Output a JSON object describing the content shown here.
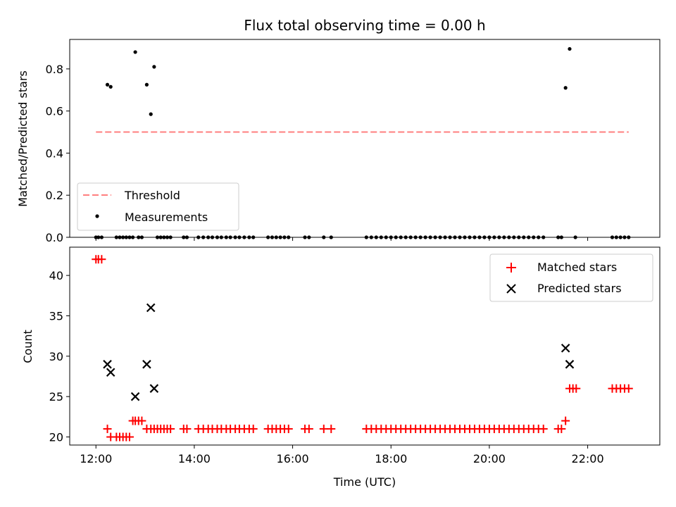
{
  "chart_data": [
    {
      "type": "scatter",
      "title": "Flux total observing time = 0.00 h",
      "xlabel": "",
      "ylabel": "Matched/Predicted stars",
      "xlim": [
        "11:28",
        "23:28"
      ],
      "ylim": [
        0,
        0.94
      ],
      "yticks": [
        "0.0",
        "0.2",
        "0.4",
        "0.6",
        "0.8"
      ],
      "legend": {
        "position": "lower-left",
        "entries": [
          {
            "label": "Threshold",
            "marker": "dashed-line",
            "color": "#ff7f7f"
          },
          {
            "label": "Measurements",
            "marker": "dot",
            "color": "#000000"
          }
        ]
      },
      "threshold": {
        "y": 0.5,
        "x_from": "12:00",
        "x_to": "22:50",
        "color": "#ff7f7f"
      },
      "series": [
        {
          "name": "Measurements",
          "color": "#000000",
          "points": [
            {
              "x": "12:00",
              "y": 0
            },
            {
              "x": "12:03",
              "y": 0
            },
            {
              "x": "12:07",
              "y": 0
            },
            {
              "x": "12:14",
              "y": 0.725
            },
            {
              "x": "12:18",
              "y": 0.715
            },
            {
              "x": "12:25",
              "y": 0
            },
            {
              "x": "12:29",
              "y": 0
            },
            {
              "x": "12:33",
              "y": 0
            },
            {
              "x": "12:37",
              "y": 0
            },
            {
              "x": "12:41",
              "y": 0
            },
            {
              "x": "12:45",
              "y": 0
            },
            {
              "x": "12:48",
              "y": 0.88
            },
            {
              "x": "12:52",
              "y": 0
            },
            {
              "x": "12:56",
              "y": 0
            },
            {
              "x": "13:02",
              "y": 0.725
            },
            {
              "x": "13:07",
              "y": 0.585
            },
            {
              "x": "13:11",
              "y": 0.81
            },
            {
              "x": "13:15",
              "y": 0
            },
            {
              "x": "13:19",
              "y": 0
            },
            {
              "x": "13:23",
              "y": 0
            },
            {
              "x": "13:27",
              "y": 0
            },
            {
              "x": "13:31",
              "y": 0
            },
            {
              "x": "13:47",
              "y": 0
            },
            {
              "x": "13:51",
              "y": 0
            },
            {
              "x": "14:05",
              "y": 0
            },
            {
              "x": "14:11",
              "y": 0
            },
            {
              "x": "14:17",
              "y": 0
            },
            {
              "x": "14:22",
              "y": 0
            },
            {
              "x": "14:28",
              "y": 0
            },
            {
              "x": "14:33",
              "y": 0
            },
            {
              "x": "14:39",
              "y": 0
            },
            {
              "x": "14:44",
              "y": 0
            },
            {
              "x": "14:50",
              "y": 0
            },
            {
              "x": "14:55",
              "y": 0
            },
            {
              "x": "15:01",
              "y": 0
            },
            {
              "x": "15:07",
              "y": 0
            },
            {
              "x": "15:12",
              "y": 0
            },
            {
              "x": "15:30",
              "y": 0
            },
            {
              "x": "15:35",
              "y": 0
            },
            {
              "x": "15:40",
              "y": 0
            },
            {
              "x": "15:45",
              "y": 0
            },
            {
              "x": "15:50",
              "y": 0
            },
            {
              "x": "15:55",
              "y": 0
            },
            {
              "x": "16:15",
              "y": 0
            },
            {
              "x": "16:20",
              "y": 0
            },
            {
              "x": "16:38",
              "y": 0
            },
            {
              "x": "16:47",
              "y": 0
            },
            {
              "x": "17:30",
              "y": 0
            },
            {
              "x": "17:36",
              "y": 0
            },
            {
              "x": "17:42",
              "y": 0
            },
            {
              "x": "17:48",
              "y": 0
            },
            {
              "x": "17:54",
              "y": 0
            },
            {
              "x": "18:00",
              "y": 0
            },
            {
              "x": "18:06",
              "y": 0
            },
            {
              "x": "18:12",
              "y": 0
            },
            {
              "x": "18:18",
              "y": 0
            },
            {
              "x": "18:24",
              "y": 0
            },
            {
              "x": "18:30",
              "y": 0
            },
            {
              "x": "18:36",
              "y": 0
            },
            {
              "x": "18:42",
              "y": 0
            },
            {
              "x": "18:48",
              "y": 0
            },
            {
              "x": "18:54",
              "y": 0
            },
            {
              "x": "19:00",
              "y": 0
            },
            {
              "x": "19:06",
              "y": 0
            },
            {
              "x": "19:12",
              "y": 0
            },
            {
              "x": "19:18",
              "y": 0
            },
            {
              "x": "19:24",
              "y": 0
            },
            {
              "x": "19:30",
              "y": 0
            },
            {
              "x": "19:36",
              "y": 0
            },
            {
              "x": "19:42",
              "y": 0
            },
            {
              "x": "19:48",
              "y": 0
            },
            {
              "x": "19:54",
              "y": 0
            },
            {
              "x": "20:00",
              "y": 0
            },
            {
              "x": "20:06",
              "y": 0
            },
            {
              "x": "20:12",
              "y": 0
            },
            {
              "x": "20:18",
              "y": 0
            },
            {
              "x": "20:24",
              "y": 0
            },
            {
              "x": "20:30",
              "y": 0
            },
            {
              "x": "20:36",
              "y": 0
            },
            {
              "x": "20:42",
              "y": 0
            },
            {
              "x": "20:48",
              "y": 0
            },
            {
              "x": "20:54",
              "y": 0
            },
            {
              "x": "21:00",
              "y": 0
            },
            {
              "x": "21:06",
              "y": 0
            },
            {
              "x": "21:24",
              "y": 0
            },
            {
              "x": "21:28",
              "y": 0
            },
            {
              "x": "21:33",
              "y": 0.71
            },
            {
              "x": "21:38",
              "y": 0.895
            },
            {
              "x": "21:45",
              "y": 0
            },
            {
              "x": "22:30",
              "y": 0
            },
            {
              "x": "22:35",
              "y": 0
            },
            {
              "x": "22:40",
              "y": 0
            },
            {
              "x": "22:45",
              "y": 0
            },
            {
              "x": "22:50",
              "y": 0
            }
          ]
        }
      ]
    },
    {
      "type": "scatter",
      "title": "",
      "xlabel": "Time (UTC)",
      "ylabel": "Count",
      "xlim": [
        "11:28",
        "23:28"
      ],
      "ylim": [
        19,
        43.5
      ],
      "xticks": [
        "12:00",
        "14:00",
        "16:00",
        "18:00",
        "20:00",
        "22:00"
      ],
      "yticks": [
        "20",
        "25",
        "30",
        "35",
        "40"
      ],
      "legend": {
        "position": "upper-right",
        "entries": [
          {
            "label": "Matched stars",
            "marker": "plus",
            "color": "#ff0000"
          },
          {
            "label": "Predicted stars",
            "marker": "x",
            "color": "#000000"
          }
        ]
      },
      "series": [
        {
          "name": "Matched stars",
          "marker": "plus",
          "color": "#ff0000",
          "points": [
            {
              "x": "12:00",
              "y": 42
            },
            {
              "x": "12:03",
              "y": 42
            },
            {
              "x": "12:07",
              "y": 42
            },
            {
              "x": "12:14",
              "y": 21
            },
            {
              "x": "12:18",
              "y": 20
            },
            {
              "x": "12:25",
              "y": 20
            },
            {
              "x": "12:29",
              "y": 20
            },
            {
              "x": "12:33",
              "y": 20
            },
            {
              "x": "12:37",
              "y": 20
            },
            {
              "x": "12:41",
              "y": 20
            },
            {
              "x": "12:45",
              "y": 22
            },
            {
              "x": "12:48",
              "y": 22
            },
            {
              "x": "12:52",
              "y": 22
            },
            {
              "x": "12:56",
              "y": 22
            },
            {
              "x": "13:02",
              "y": 21
            },
            {
              "x": "13:07",
              "y": 21
            },
            {
              "x": "13:11",
              "y": 21
            },
            {
              "x": "13:15",
              "y": 21
            },
            {
              "x": "13:19",
              "y": 21
            },
            {
              "x": "13:23",
              "y": 21
            },
            {
              "x": "13:27",
              "y": 21
            },
            {
              "x": "13:31",
              "y": 21
            },
            {
              "x": "13:47",
              "y": 21
            },
            {
              "x": "13:51",
              "y": 21
            },
            {
              "x": "14:05",
              "y": 21
            },
            {
              "x": "14:11",
              "y": 21
            },
            {
              "x": "14:17",
              "y": 21
            },
            {
              "x": "14:22",
              "y": 21
            },
            {
              "x": "14:28",
              "y": 21
            },
            {
              "x": "14:33",
              "y": 21
            },
            {
              "x": "14:39",
              "y": 21
            },
            {
              "x": "14:44",
              "y": 21
            },
            {
              "x": "14:50",
              "y": 21
            },
            {
              "x": "14:55",
              "y": 21
            },
            {
              "x": "15:01",
              "y": 21
            },
            {
              "x": "15:07",
              "y": 21
            },
            {
              "x": "15:12",
              "y": 21
            },
            {
              "x": "15:30",
              "y": 21
            },
            {
              "x": "15:35",
              "y": 21
            },
            {
              "x": "15:40",
              "y": 21
            },
            {
              "x": "15:45",
              "y": 21
            },
            {
              "x": "15:50",
              "y": 21
            },
            {
              "x": "15:55",
              "y": 21
            },
            {
              "x": "16:15",
              "y": 21
            },
            {
              "x": "16:20",
              "y": 21
            },
            {
              "x": "16:38",
              "y": 21
            },
            {
              "x": "16:47",
              "y": 21
            },
            {
              "x": "17:30",
              "y": 21
            },
            {
              "x": "17:36",
              "y": 21
            },
            {
              "x": "17:42",
              "y": 21
            },
            {
              "x": "17:48",
              "y": 21
            },
            {
              "x": "17:54",
              "y": 21
            },
            {
              "x": "18:00",
              "y": 21
            },
            {
              "x": "18:06",
              "y": 21
            },
            {
              "x": "18:12",
              "y": 21
            },
            {
              "x": "18:18",
              "y": 21
            },
            {
              "x": "18:24",
              "y": 21
            },
            {
              "x": "18:30",
              "y": 21
            },
            {
              "x": "18:36",
              "y": 21
            },
            {
              "x": "18:42",
              "y": 21
            },
            {
              "x": "18:48",
              "y": 21
            },
            {
              "x": "18:54",
              "y": 21
            },
            {
              "x": "19:00",
              "y": 21
            },
            {
              "x": "19:06",
              "y": 21
            },
            {
              "x": "19:12",
              "y": 21
            },
            {
              "x": "19:18",
              "y": 21
            },
            {
              "x": "19:24",
              "y": 21
            },
            {
              "x": "19:30",
              "y": 21
            },
            {
              "x": "19:36",
              "y": 21
            },
            {
              "x": "19:42",
              "y": 21
            },
            {
              "x": "19:48",
              "y": 21
            },
            {
              "x": "19:54",
              "y": 21
            },
            {
              "x": "20:00",
              "y": 21
            },
            {
              "x": "20:06",
              "y": 21
            },
            {
              "x": "20:12",
              "y": 21
            },
            {
              "x": "20:18",
              "y": 21
            },
            {
              "x": "20:24",
              "y": 21
            },
            {
              "x": "20:30",
              "y": 21
            },
            {
              "x": "20:36",
              "y": 21
            },
            {
              "x": "20:42",
              "y": 21
            },
            {
              "x": "20:48",
              "y": 21
            },
            {
              "x": "20:54",
              "y": 21
            },
            {
              "x": "21:00",
              "y": 21
            },
            {
              "x": "21:06",
              "y": 21
            },
            {
              "x": "21:24",
              "y": 21
            },
            {
              "x": "21:28",
              "y": 21
            },
            {
              "x": "21:33",
              "y": 22
            },
            {
              "x": "21:38",
              "y": 26
            },
            {
              "x": "21:42",
              "y": 26
            },
            {
              "x": "21:46",
              "y": 26
            },
            {
              "x": "22:30",
              "y": 26
            },
            {
              "x": "22:35",
              "y": 26
            },
            {
              "x": "22:40",
              "y": 26
            },
            {
              "x": "22:45",
              "y": 26
            },
            {
              "x": "22:50",
              "y": 26
            }
          ]
        },
        {
          "name": "Predicted stars",
          "marker": "x",
          "color": "#000000",
          "points": [
            {
              "x": "12:14",
              "y": 29
            },
            {
              "x": "12:18",
              "y": 28
            },
            {
              "x": "12:48",
              "y": 25
            },
            {
              "x": "13:02",
              "y": 29
            },
            {
              "x": "13:07",
              "y": 36
            },
            {
              "x": "13:11",
              "y": 26
            },
            {
              "x": "21:33",
              "y": 31
            },
            {
              "x": "21:38",
              "y": 29
            }
          ]
        }
      ]
    }
  ]
}
